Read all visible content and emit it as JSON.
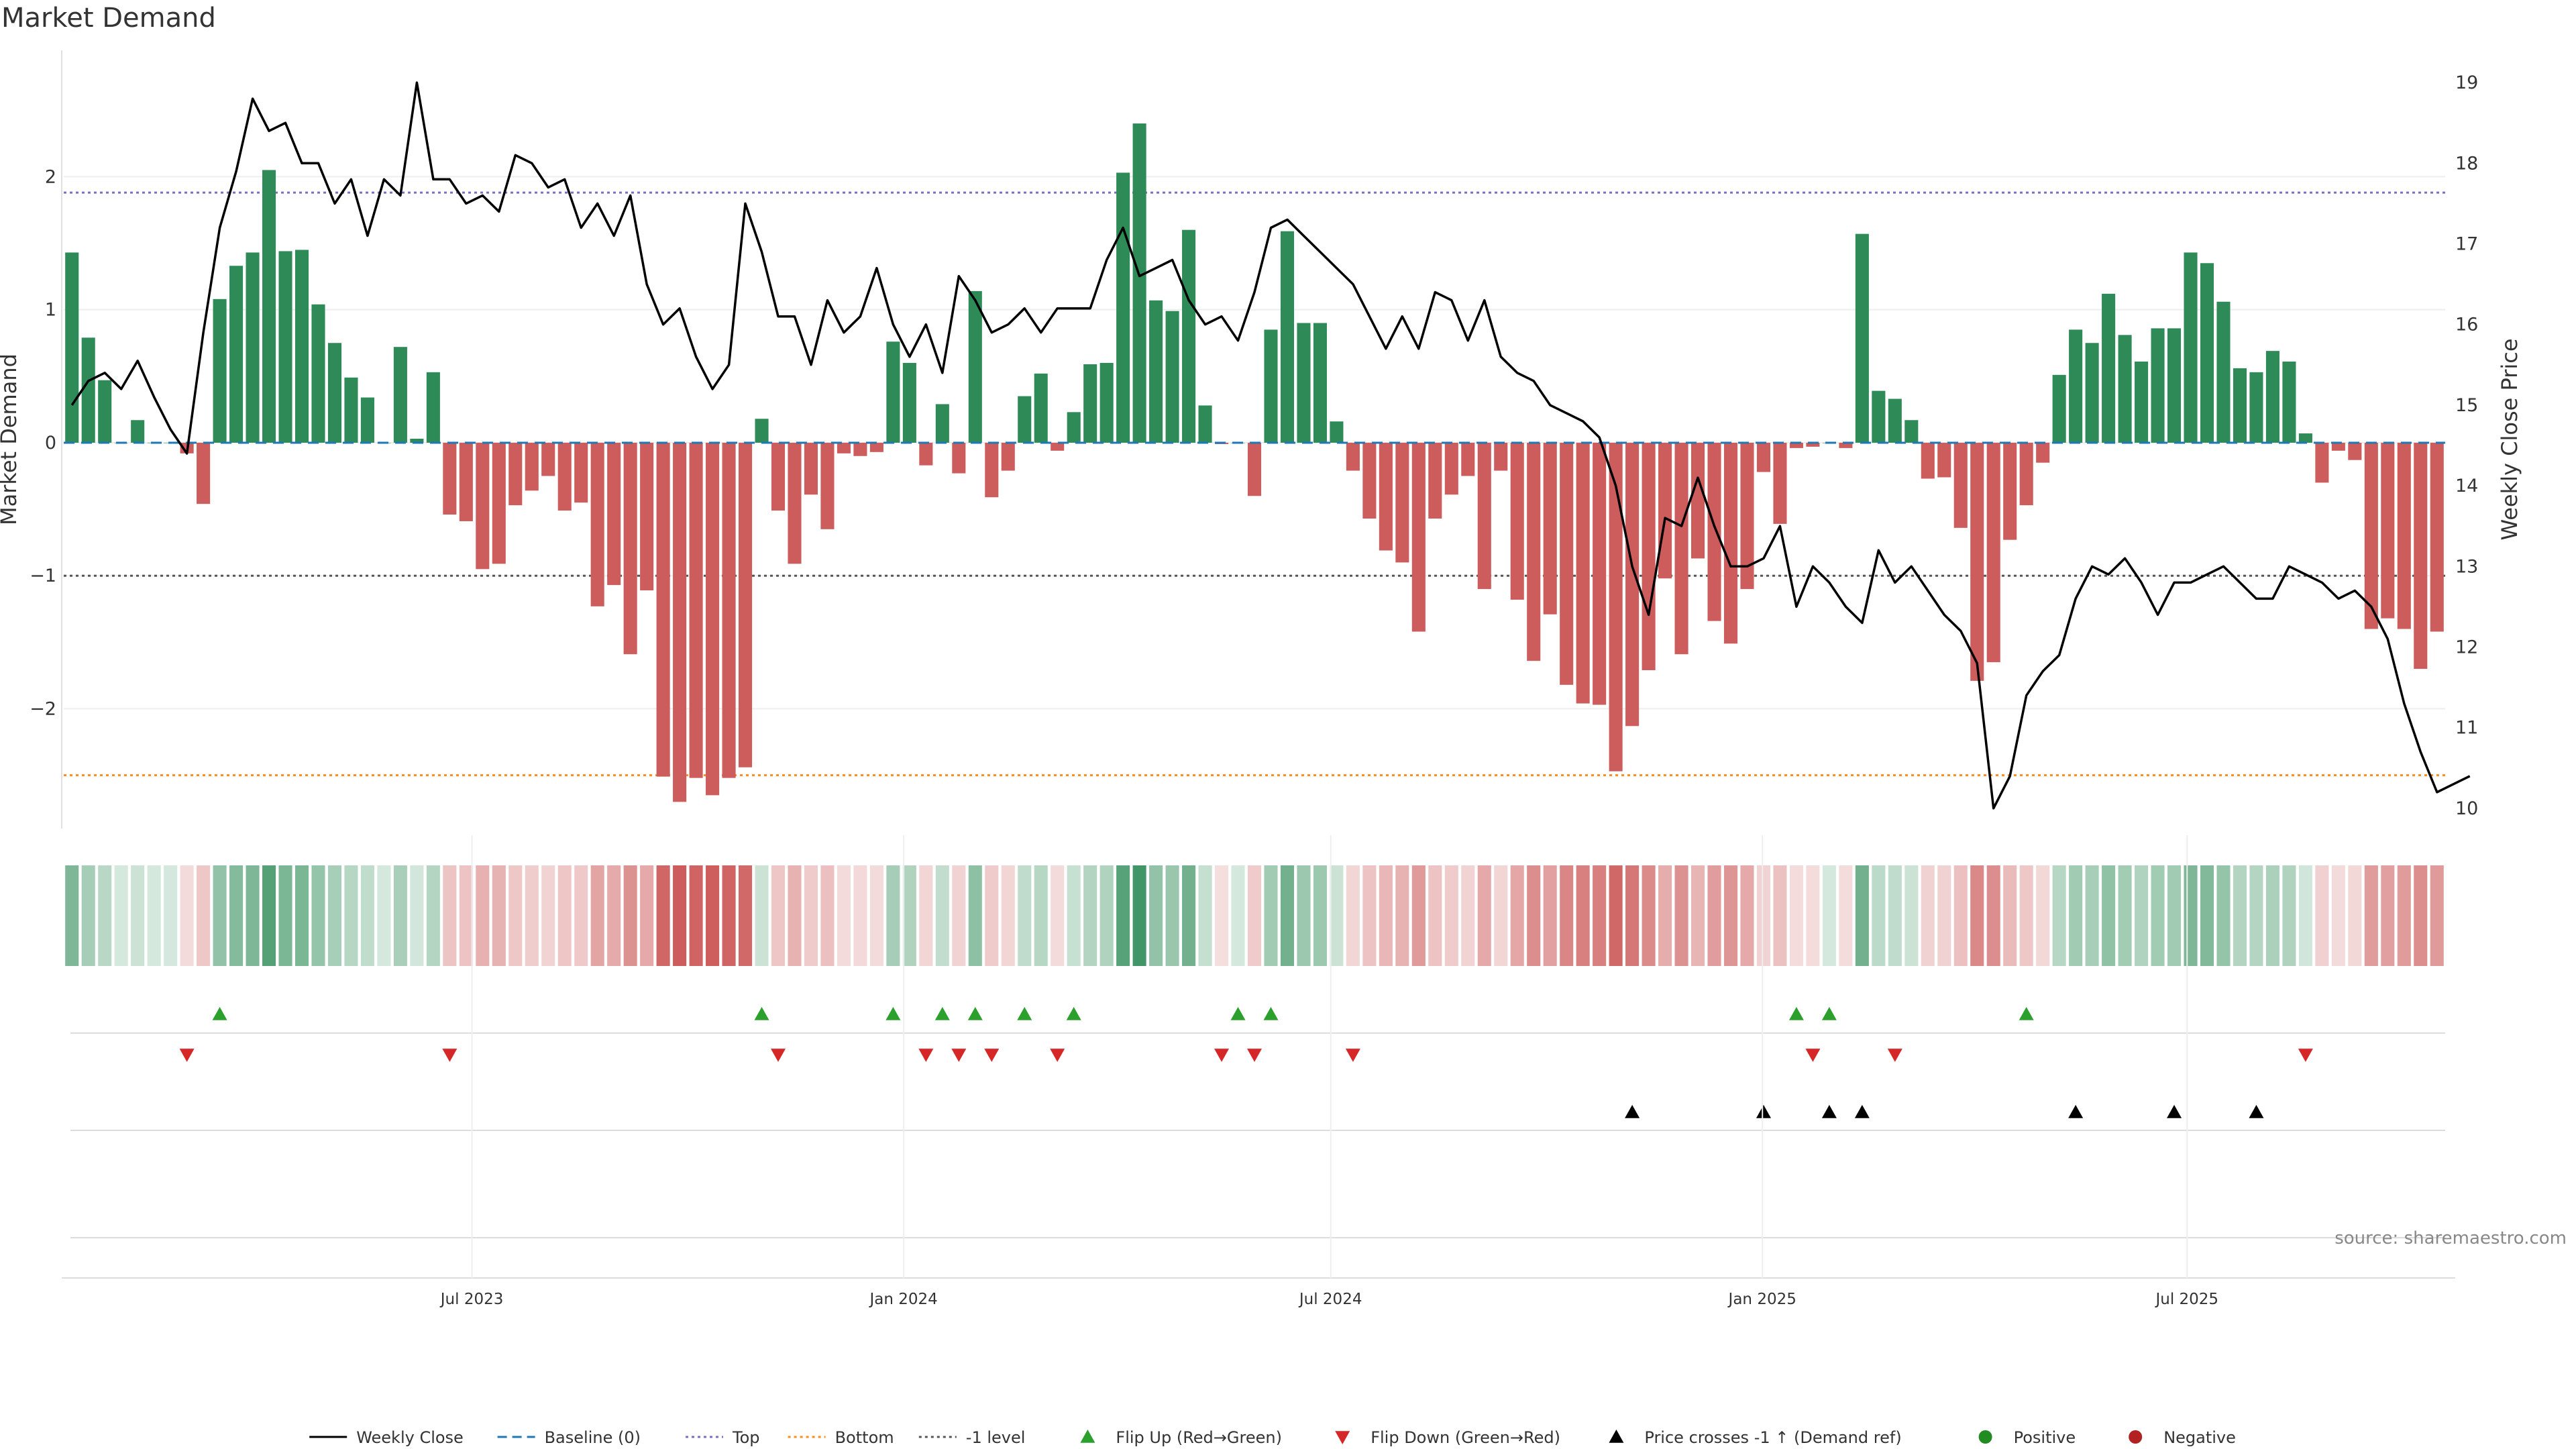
{
  "chart_data": {
    "type": "bar",
    "title": "Market Demand",
    "ylabel": "Market Demand",
    "y2label": "Weekly Close Price",
    "ylim": [
      -2.9,
      2.95
    ],
    "y2lim": [
      9.75,
      19.4
    ],
    "yticks": [
      -2,
      -1,
      0,
      1,
      2
    ],
    "yticklabels": [
      "−2",
      "−1",
      "0",
      "1",
      "2"
    ],
    "y2ticks": [
      10,
      11,
      12,
      13,
      14,
      15,
      16,
      17,
      18,
      19
    ],
    "x_start": "2023-01-08",
    "x_end": "2025-10-19",
    "xticks": [
      {
        "date": "2023-07-01",
        "label": "Jul 2023"
      },
      {
        "date": "2024-01-01",
        "label": "Jan 2024"
      },
      {
        "date": "2024-07-01",
        "label": "Jul 2024"
      },
      {
        "date": "2025-01-01",
        "label": "Jan 2025"
      },
      {
        "date": "2025-07-01",
        "label": "Jul 2025"
      }
    ],
    "levels": {
      "top": 1.88,
      "bottom": -2.5,
      "minus_one": -1,
      "baseline": 0
    },
    "demand": [
      1.43,
      0.79,
      0.47,
      0,
      0.17,
      0,
      0,
      -0.08,
      -0.46,
      1.08,
      1.33,
      1.43,
      2.05,
      1.44,
      1.45,
      1.04,
      0.75,
      0.49,
      0.34,
      0,
      0.72,
      0.03,
      0.53,
      -0.54,
      -0.59,
      -0.95,
      -0.91,
      -0.47,
      -0.36,
      -0.25,
      -0.51,
      -0.45,
      -1.23,
      -1.07,
      -1.59,
      -1.11,
      -2.51,
      -2.7,
      -2.52,
      -2.65,
      -2.52,
      -2.44,
      0.18,
      -0.51,
      -0.91,
      -0.39,
      -0.65,
      -0.08,
      -0.1,
      -0.07,
      0.76,
      0.6,
      -0.17,
      0.29,
      -0.23,
      1.14,
      -0.41,
      -0.21,
      0.35,
      0.52,
      -0.06,
      0.23,
      0.59,
      0.6,
      2.03,
      2.4,
      1.07,
      0.99,
      1.6,
      0.28,
      -0.01,
      0,
      -0.4,
      0.85,
      1.59,
      0.9,
      0.9,
      0.16,
      -0.21,
      -0.57,
      -0.81,
      -0.9,
      -1.42,
      -0.57,
      -0.39,
      -0.25,
      -1.1,
      -0.21,
      -1.18,
      -1.64,
      -1.29,
      -1.82,
      -1.96,
      -1.97,
      -2.47,
      -2.13,
      -1.71,
      -1.02,
      -1.59,
      -0.87,
      -1.34,
      -1.51,
      -1.1,
      -0.22,
      -0.61,
      -0.04,
      -0.03,
      0,
      -0.04,
      1.57,
      0.39,
      0.33,
      0.17,
      -0.27,
      -0.26,
      -0.64,
      -1.79,
      -1.65,
      -0.73,
      -0.47,
      -0.15,
      0.51,
      0.85,
      0.75,
      1.12,
      0.81,
      0.61,
      0.86,
      0.86,
      1.43,
      1.35,
      1.06,
      0.56,
      0.53,
      0.69,
      0.61,
      0.07,
      -0.3,
      -0.06,
      -0.13,
      -1.4,
      -1.32,
      -1.4,
      -1.7,
      -1.42
    ],
    "close": [
      15.0,
      15.3,
      15.4,
      15.2,
      15.55,
      15.1,
      14.7,
      14.4,
      15.9,
      17.2,
      17.9,
      18.8,
      18.4,
      18.5,
      18.0,
      18.0,
      17.5,
      17.8,
      17.1,
      17.8,
      17.6,
      19.0,
      17.8,
      17.8,
      17.5,
      17.6,
      17.4,
      18.1,
      18.0,
      17.7,
      17.8,
      17.2,
      17.5,
      17.1,
      17.6,
      16.5,
      16.0,
      16.2,
      15.6,
      15.2,
      15.5,
      17.5,
      16.9,
      16.1,
      16.1,
      15.5,
      16.3,
      15.9,
      16.1,
      16.7,
      16.0,
      15.6,
      16.0,
      15.4,
      16.6,
      16.3,
      15.9,
      16.0,
      16.2,
      15.9,
      16.2,
      16.2,
      16.2,
      16.8,
      17.2,
      16.6,
      16.7,
      16.8,
      16.3,
      16.0,
      16.1,
      15.8,
      16.4,
      17.2,
      17.3,
      17.1,
      16.9,
      16.7,
      16.5,
      16.1,
      15.7,
      16.1,
      15.7,
      16.4,
      16.3,
      15.8,
      16.3,
      15.6,
      15.4,
      15.3,
      15.0,
      14.9,
      14.8,
      14.6,
      14.0,
      13.0,
      12.4,
      13.6,
      13.5,
      14.1,
      13.5,
      13.0,
      13.0,
      13.1,
      13.5,
      12.5,
      13.0,
      12.8,
      12.5,
      12.3,
      13.2,
      12.8,
      13.0,
      12.7,
      12.4,
      12.2,
      11.8,
      10.0,
      10.4,
      11.4,
      11.7,
      11.9,
      12.6,
      13.0,
      12.9,
      13.1,
      12.8,
      12.4,
      12.8,
      12.8,
      12.9,
      13.0,
      12.8,
      12.6,
      12.6,
      13.0,
      12.9,
      12.8,
      12.6,
      12.7,
      12.5,
      12.1,
      11.3,
      10.7,
      10.2,
      10.3,
      10.4
    ]
  },
  "heat_strip": {
    "positive_color": "#2e8b57",
    "negative_color": "#cd5c5c"
  },
  "events": {
    "flip_up": [
      9,
      42,
      50,
      53,
      55,
      58,
      61,
      71,
      73,
      105,
      107,
      119
    ],
    "flip_down": [
      7,
      23,
      43,
      52,
      54,
      56,
      60,
      70,
      72,
      78,
      106,
      111,
      136
    ],
    "price_cross_up": [
      95,
      103,
      107,
      109,
      122,
      128,
      133
    ]
  },
  "colors": {
    "positive": "#2e8b57",
    "negative": "#cd5c5c",
    "flip_up": "#2ca02c",
    "flip_down": "#d62728",
    "price_line": "#000000",
    "top_level": "#7b6fc4",
    "bottom_level": "#ff8c1a",
    "minus_one_level": "#555555",
    "baseline": "#1f77b4",
    "legend_positive": "#228b22",
    "legend_negative": "#b22222"
  },
  "legend": [
    {
      "label": "Weekly Close",
      "kind": "line-solid",
      "color": "#000000"
    },
    {
      "label": "Baseline (0)",
      "kind": "line-dash",
      "color": "#1f77b4"
    },
    {
      "label": "Top",
      "kind": "line-dot",
      "color": "#7b6fc4"
    },
    {
      "label": "Bottom",
      "kind": "line-dot",
      "color": "#ff8c1a"
    },
    {
      "label": "-1 level",
      "kind": "line-dot",
      "color": "#555555"
    },
    {
      "label": "Flip Up (Red→Green)",
      "kind": "tri-up",
      "color": "#2ca02c"
    },
    {
      "label": "Flip Down (Green→Red)",
      "kind": "tri-down",
      "color": "#d62728"
    },
    {
      "label": "Price crosses -1 ↑ (Demand ref)",
      "kind": "tri-up",
      "color": "#000000"
    },
    {
      "label": "Positive",
      "kind": "dot",
      "color": "#228b22"
    },
    {
      "label": "Negative",
      "kind": "dot",
      "color": "#b22222"
    }
  ],
  "source": "source: sharemaestro.com"
}
